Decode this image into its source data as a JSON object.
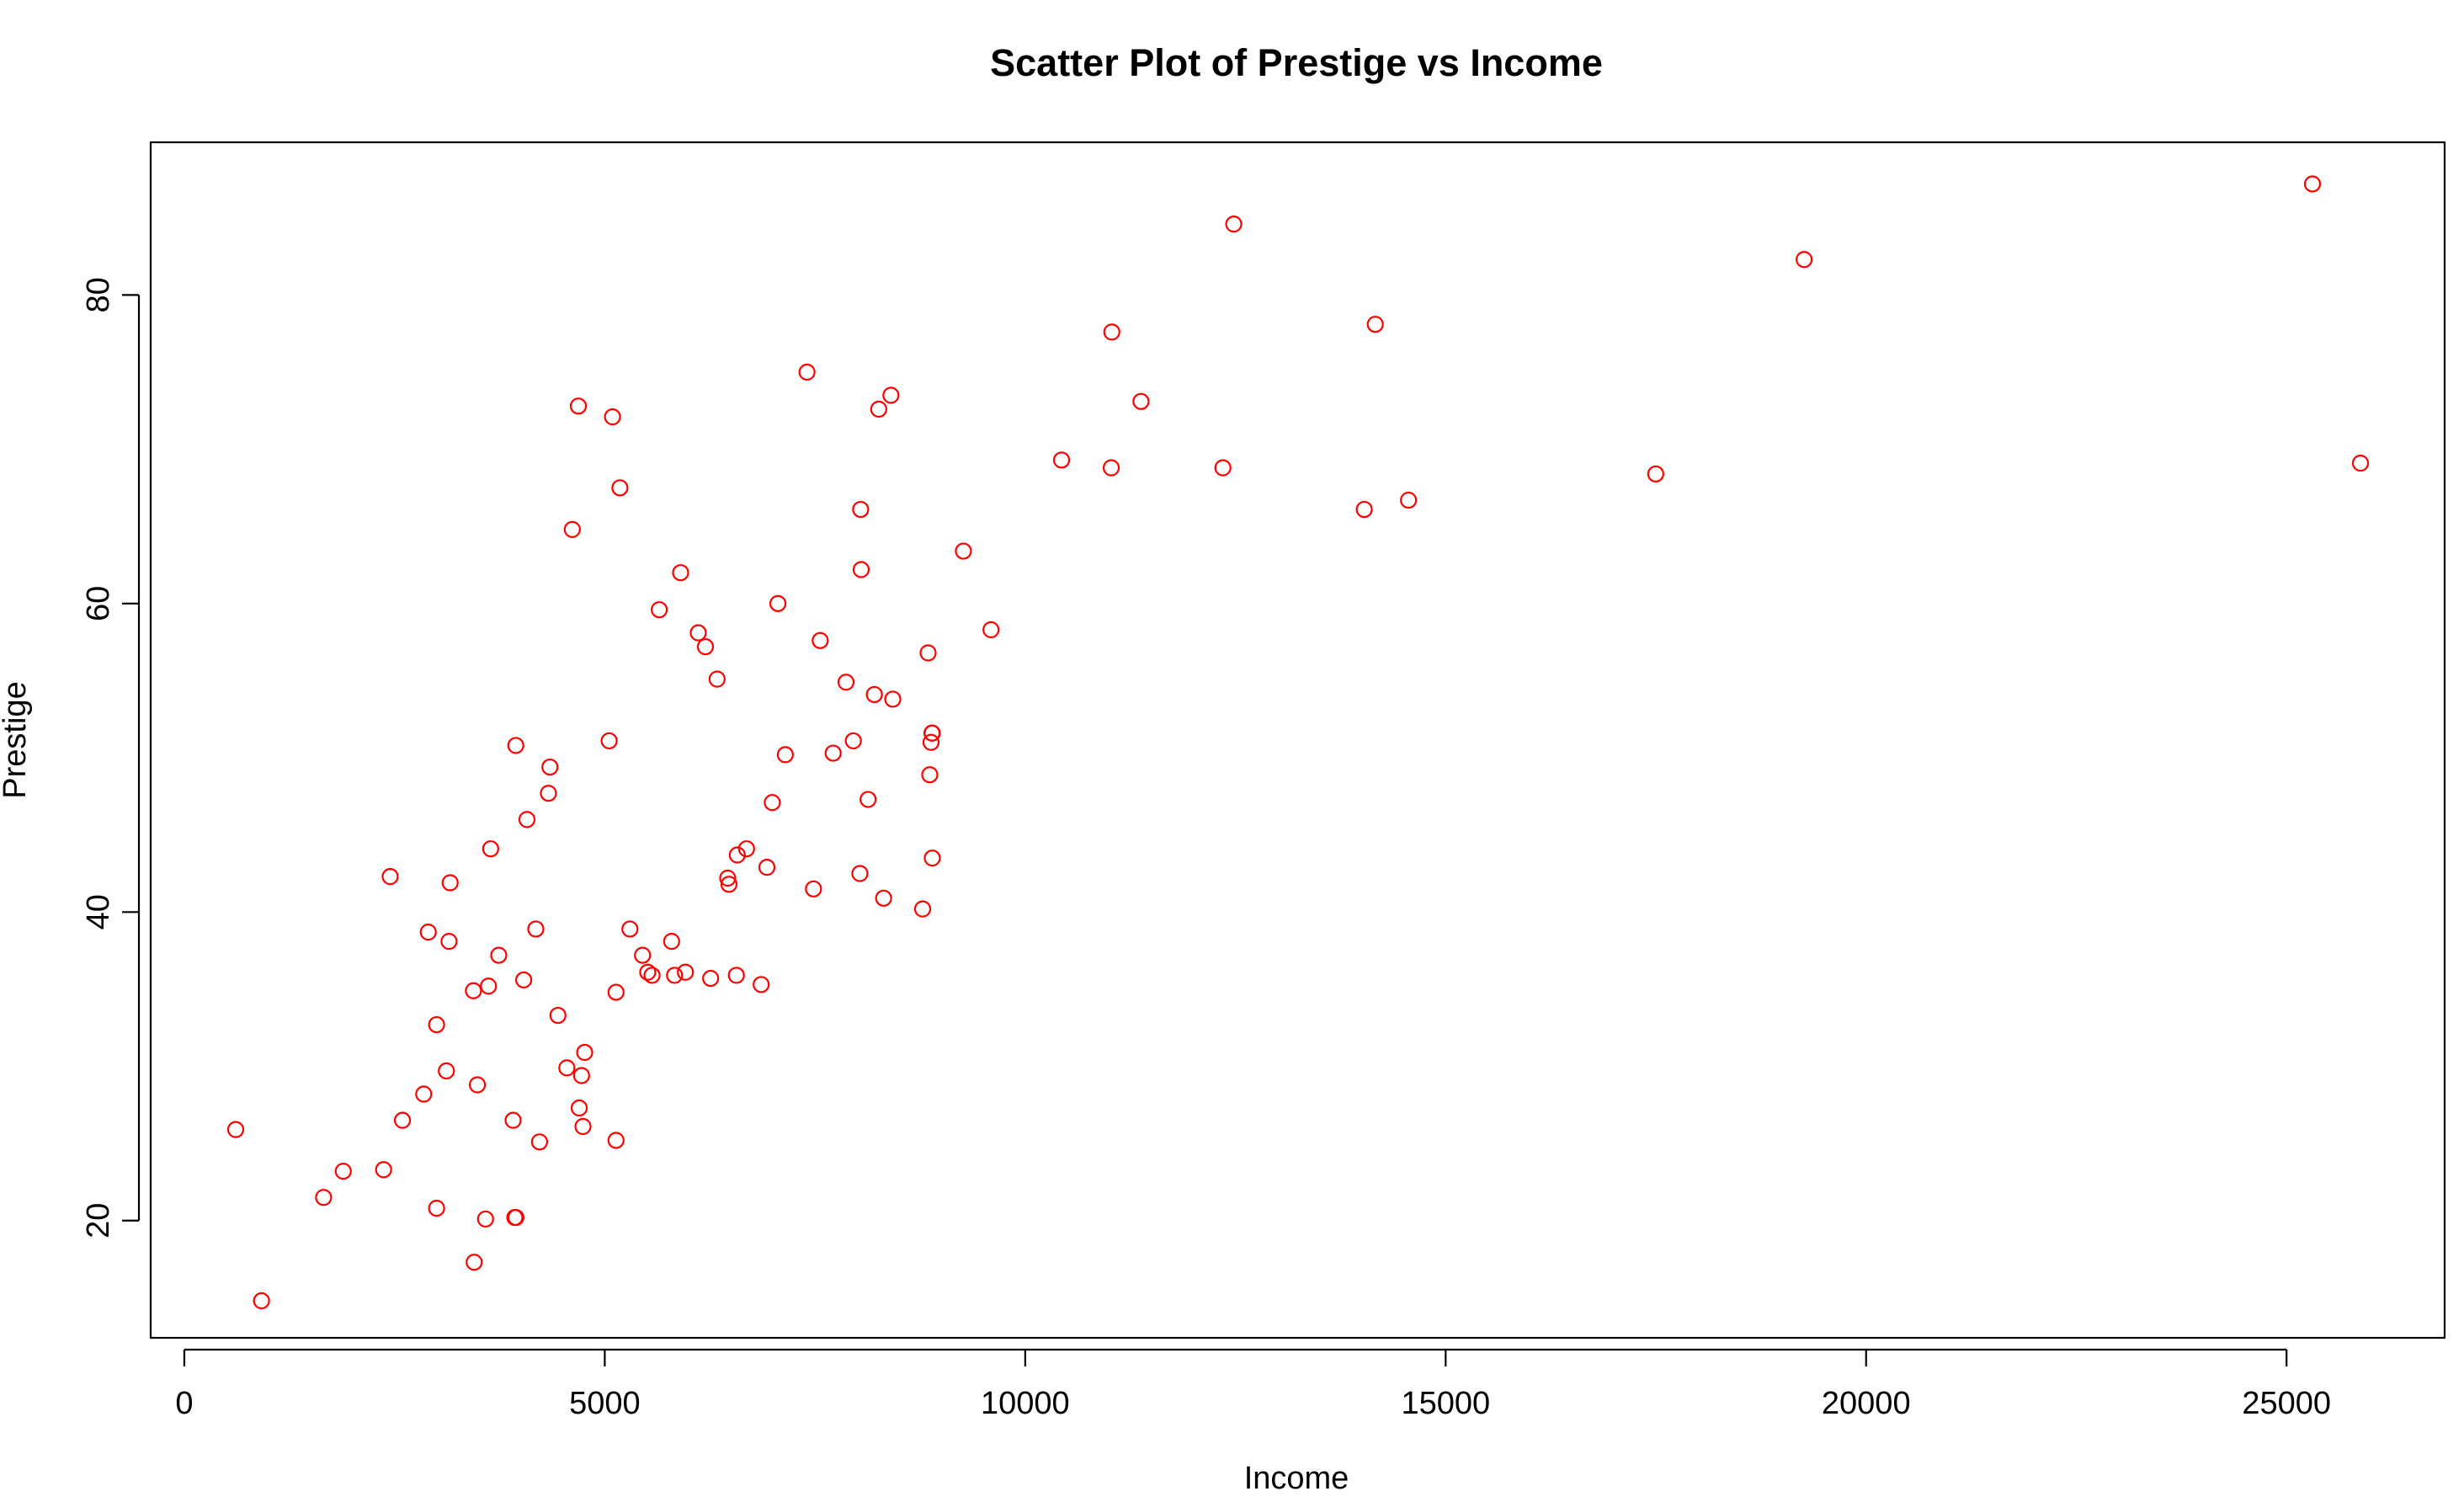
{
  "chart_data": {
    "type": "scatter",
    "title": "Scatter Plot of Prestige vs Income",
    "xlabel": "Income",
    "ylabel": "Prestige",
    "xlim": [
      -400,
      26880
    ],
    "ylim": [
      12.4,
      89.9
    ],
    "xticks": [
      0,
      5000,
      10000,
      15000,
      20000,
      25000
    ],
    "yticks": [
      20,
      40,
      60,
      80
    ],
    "xtick_labels": [
      "0",
      "5000",
      "10000",
      "15000",
      "20000",
      "25000"
    ],
    "ytick_labels": [
      "20",
      "40",
      "60",
      "80"
    ],
    "grid": false,
    "legend": "none",
    "point_color": "#ff0000",
    "marker": "open-circle",
    "series": [
      {
        "x": [
          611,
          918,
          1656,
          1890,
          2370,
          2448,
          2594,
          2847,
          2901,
          3000,
          3000,
          3116,
          3148,
          3161,
          3485,
          3447,
          3438,
          3582,
          3617,
          3643,
          3739,
          3910,
          3930,
          3942,
          3943,
          4036,
          4075,
          4180,
          4224,
          4330,
          4348,
          4443,
          4549,
          4614,
          4686,
          4696,
          4724,
          4741,
          4761,
          5052,
          5092,
          5134,
          5134,
          5180,
          5299,
          5449,
          5511,
          5562,
          5648,
          5795,
          5830,
          5902,
          5959,
          6112,
          6197,
          6259,
          6336,
          6462,
          6477,
          6565,
          6576,
          6686,
          6860,
          6928,
          6992,
          7059,
          7147,
          7405,
          7482,
          7562,
          7716,
          7869,
          7956,
          8034,
          8043,
          8049,
          8131,
          8206,
          8258,
          8316,
          8403,
          8425,
          8780,
          8845,
          8865,
          8880,
          8895,
          8895,
          8891,
          9265,
          9593,
          10432,
          11023,
          11030,
          11377,
          12351,
          12480,
          14032,
          14163,
          14558,
          17498,
          19263,
          25308,
          25879
        ],
        "y": [
          25.9,
          14.8,
          21.5,
          23.2,
          23.3,
          42.3,
          26.5,
          28.2,
          38.7,
          32.7,
          20.8,
          29.7,
          38.1,
          41.9,
          28.8,
          17.3,
          34.9,
          20.1,
          35.2,
          44.1,
          37.2,
          26.5,
          20.2,
          50.8,
          20.2,
          35.6,
          46.0,
          38.9,
          25.1,
          47.7,
          49.4,
          33.3,
          29.9,
          64.8,
          72.8,
          27.3,
          29.4,
          26.1,
          30.9,
          51.1,
          72.1,
          25.2,
          34.8,
          67.5,
          38.9,
          37.2,
          36.1,
          35.9,
          59.6,
          38.1,
          35.9,
          62.0,
          36.1,
          58.1,
          57.2,
          35.7,
          55.1,
          42.2,
          41.8,
          35.9,
          43.7,
          44.1,
          35.3,
          42.9,
          47.1,
          60.0,
          50.2,
          75.0,
          41.5,
          57.6,
          50.3,
          54.9,
          51.1,
          42.5,
          66.1,
          62.2,
          47.3,
          54.1,
          72.6,
          40.9,
          73.5,
          53.8,
          40.2,
          56.8,
          48.9,
          51.0,
          51.6,
          43.5,
          51.6,
          63.4,
          58.3,
          69.3,
          68.8,
          77.6,
          73.1,
          68.8,
          84.6,
          66.1,
          78.1,
          66.7,
          68.4,
          82.3,
          87.2,
          69.1
        ]
      }
    ]
  }
}
